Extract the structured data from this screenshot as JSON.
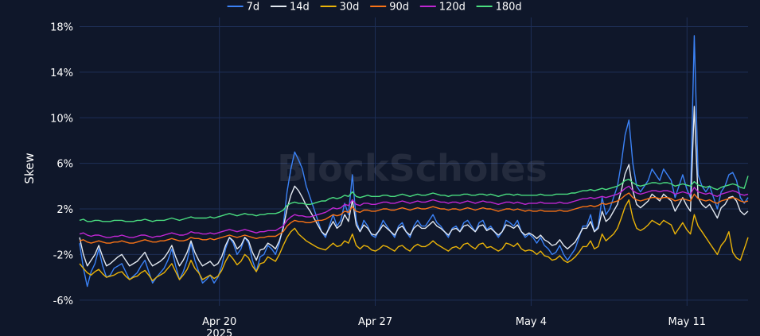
{
  "chart_data": {
    "type": "line",
    "watermark": "BlockScholes",
    "ylabel": "Skew",
    "xlabel": "",
    "yticks": [
      "-6%",
      "-2%",
      "2%",
      "6%",
      "10%",
      "14%",
      "18%"
    ],
    "ytick_values": [
      -6,
      -2,
      2,
      6,
      10,
      14,
      18
    ],
    "ylim": [
      -6.5,
      18.8
    ],
    "x_range_days": [
      0,
      41.6
    ],
    "xticks": [
      {
        "label": "Apr 20",
        "day": 8.7,
        "sub": "2025"
      },
      {
        "label": "Apr 27",
        "day": 18.4
      },
      {
        "label": "May 4",
        "day": 28.1
      },
      {
        "label": "May 11",
        "day": 37.8
      }
    ],
    "legend_position": "top-center",
    "grid": true,
    "series": [
      {
        "name": "7d",
        "color": "#3b82f6",
        "values": [
          -1.0,
          -3.2,
          -4.8,
          -3.5,
          -2.8,
          -1.5,
          -3.0,
          -4.0,
          -3.8,
          -3.2,
          -3.0,
          -2.8,
          -3.5,
          -4.2,
          -3.9,
          -3.6,
          -3.0,
          -2.5,
          -3.5,
          -4.5,
          -4.0,
          -3.6,
          -3.2,
          -2.5,
          -1.5,
          -3.0,
          -4.2,
          -3.5,
          -2.5,
          -1.0,
          -2.5,
          -3.5,
          -4.5,
          -4.2,
          -3.8,
          -4.5,
          -4.0,
          -3.0,
          -1.5,
          -0.5,
          -1.0,
          -2.0,
          -1.5,
          -0.5,
          -1.0,
          -2.5,
          -3.5,
          -2.2,
          -2.0,
          -1.2,
          -1.5,
          -2.0,
          -1.0,
          0.5,
          3.5,
          5.5,
          7.0,
          6.3,
          5.5,
          4.0,
          3.0,
          2.0,
          1.0,
          0.0,
          -0.5,
          0.5,
          1.5,
          0.5,
          1.0,
          2.5,
          1.5,
          5.0,
          1.0,
          0.0,
          1.0,
          0.5,
          -0.3,
          -0.5,
          0.2,
          1.0,
          0.5,
          0.0,
          -0.5,
          0.5,
          0.8,
          0.0,
          -0.5,
          0.5,
          1.0,
          0.5,
          0.5,
          1.0,
          1.5,
          0.8,
          0.5,
          0.0,
          -0.5,
          0.3,
          0.5,
          0.0,
          0.8,
          1.0,
          0.5,
          0.0,
          0.8,
          1.0,
          0.2,
          0.5,
          0.0,
          -0.5,
          0.0,
          1.0,
          0.8,
          0.5,
          1.0,
          0.0,
          -0.5,
          -0.2,
          -0.5,
          -1.0,
          -0.5,
          -1.2,
          -1.5,
          -2.0,
          -1.8,
          -1.2,
          -2.0,
          -2.5,
          -2.0,
          -1.5,
          -0.5,
          0.5,
          0.5,
          1.5,
          0.0,
          0.5,
          3.0,
          1.5,
          2.0,
          3.0,
          4.0,
          6.0,
          8.5,
          9.8,
          6.0,
          4.0,
          3.5,
          4.0,
          4.5,
          5.5,
          5.0,
          4.5,
          5.5,
          5.0,
          4.5,
          3.0,
          4.0,
          5.0,
          3.8,
          3.0,
          17.2,
          5.0,
          4.0,
          3.5,
          4.0,
          3.0,
          2.0,
          3.5,
          4.0,
          5.0,
          5.2,
          4.5,
          3.0,
          2.5,
          3.0
        ]
      },
      {
        "name": "14d",
        "color": "#e2e8f0",
        "values": [
          -0.5,
          -2.0,
          -3.0,
          -2.5,
          -2.0,
          -1.2,
          -2.2,
          -3.0,
          -2.8,
          -2.5,
          -2.2,
          -2.0,
          -2.5,
          -3.0,
          -2.8,
          -2.6,
          -2.2,
          -1.8,
          -2.5,
          -3.0,
          -2.8,
          -2.6,
          -2.3,
          -1.8,
          -1.2,
          -2.2,
          -3.0,
          -2.5,
          -1.8,
          -0.8,
          -1.8,
          -2.5,
          -3.0,
          -2.8,
          -2.6,
          -3.0,
          -2.8,
          -2.2,
          -1.2,
          -0.5,
          -0.8,
          -1.5,
          -1.2,
          -0.5,
          -0.8,
          -1.8,
          -2.5,
          -1.6,
          -1.5,
          -1.0,
          -1.2,
          -1.5,
          -0.8,
          0.3,
          2.0,
          3.2,
          4.0,
          3.6,
          3.0,
          2.3,
          1.8,
          1.2,
          0.6,
          0.0,
          -0.3,
          0.3,
          0.9,
          0.3,
          0.6,
          1.5,
          0.9,
          2.8,
          0.6,
          0.0,
          0.6,
          0.3,
          -0.2,
          -0.3,
          0.1,
          0.6,
          0.3,
          0.0,
          -0.3,
          0.3,
          0.5,
          0.0,
          -0.3,
          0.3,
          0.6,
          0.3,
          0.3,
          0.6,
          0.9,
          0.5,
          0.3,
          0.0,
          -0.3,
          0.2,
          0.3,
          0.0,
          0.5,
          0.6,
          0.3,
          0.0,
          0.5,
          0.6,
          0.1,
          0.3,
          0.0,
          -0.3,
          0.0,
          0.6,
          0.5,
          0.3,
          0.6,
          0.0,
          -0.3,
          -0.1,
          -0.3,
          -0.6,
          -0.3,
          -0.7,
          -0.9,
          -1.2,
          -1.1,
          -0.7,
          -1.2,
          -1.5,
          -1.2,
          -0.9,
          -0.3,
          0.3,
          0.3,
          0.9,
          0.0,
          0.3,
          1.8,
          0.9,
          1.2,
          1.8,
          2.4,
          3.6,
          5.1,
          5.9,
          3.6,
          2.4,
          2.1,
          2.4,
          2.7,
          3.3,
          3.0,
          2.7,
          3.3,
          3.0,
          2.7,
          1.8,
          2.4,
          3.0,
          2.3,
          1.8,
          11.0,
          3.0,
          2.4,
          2.1,
          2.4,
          1.8,
          1.2,
          2.1,
          2.4,
          3.0,
          3.1,
          2.7,
          1.8,
          1.5,
          1.8
        ]
      },
      {
        "name": "30d",
        "color": "#eab308",
        "values": [
          -2.8,
          -3.2,
          -3.6,
          -3.8,
          -3.5,
          -3.3,
          -3.7,
          -4.0,
          -3.9,
          -3.8,
          -3.6,
          -3.5,
          -3.9,
          -4.2,
          -4.0,
          -3.9,
          -3.6,
          -3.4,
          -3.8,
          -4.3,
          -4.0,
          -3.8,
          -3.6,
          -3.2,
          -2.8,
          -3.5,
          -4.2,
          -3.8,
          -3.3,
          -2.5,
          -3.2,
          -3.6,
          -4.2,
          -4.0,
          -3.8,
          -4.1,
          -3.9,
          -3.4,
          -2.6,
          -2.0,
          -2.4,
          -2.9,
          -2.6,
          -2.0,
          -2.3,
          -3.0,
          -3.5,
          -2.8,
          -2.7,
          -2.2,
          -2.4,
          -2.6,
          -2.0,
          -1.2,
          -0.5,
          0.0,
          0.3,
          -0.2,
          -0.5,
          -0.8,
          -1.0,
          -1.2,
          -1.4,
          -1.5,
          -1.6,
          -1.3,
          -1.0,
          -1.3,
          -1.2,
          -0.8,
          -1.0,
          -0.2,
          -1.2,
          -1.5,
          -1.2,
          -1.3,
          -1.6,
          -1.7,
          -1.5,
          -1.2,
          -1.3,
          -1.5,
          -1.7,
          -1.3,
          -1.2,
          -1.5,
          -1.7,
          -1.3,
          -1.1,
          -1.3,
          -1.3,
          -1.1,
          -0.8,
          -1.1,
          -1.3,
          -1.5,
          -1.7,
          -1.4,
          -1.3,
          -1.5,
          -1.1,
          -1.0,
          -1.3,
          -1.5,
          -1.1,
          -1.0,
          -1.4,
          -1.3,
          -1.5,
          -1.7,
          -1.5,
          -1.0,
          -1.1,
          -1.3,
          -1.0,
          -1.5,
          -1.7,
          -1.6,
          -1.7,
          -2.0,
          -1.7,
          -2.1,
          -2.2,
          -2.5,
          -2.4,
          -2.1,
          -2.5,
          -2.7,
          -2.5,
          -2.2,
          -1.8,
          -1.3,
          -1.3,
          -0.8,
          -1.5,
          -1.3,
          -0.2,
          -0.8,
          -0.5,
          -0.2,
          0.3,
          1.2,
          2.2,
          2.8,
          1.2,
          0.3,
          0.1,
          0.3,
          0.6,
          1.0,
          0.8,
          0.6,
          1.0,
          0.8,
          0.6,
          -0.2,
          0.3,
          0.8,
          0.2,
          -0.2,
          1.5,
          0.5,
          0.0,
          -0.5,
          -1.0,
          -1.5,
          -2.0,
          -1.2,
          -0.8,
          0.0,
          -1.8,
          -2.3,
          -2.5,
          -1.5,
          -0.5
        ]
      },
      {
        "name": "90d",
        "color": "#f97316",
        "values": [
          -0.8,
          -0.7,
          -0.9,
          -1.0,
          -0.9,
          -0.8,
          -0.9,
          -1.0,
          -1.0,
          -0.9,
          -0.9,
          -0.8,
          -0.9,
          -1.0,
          -1.0,
          -0.9,
          -0.8,
          -0.7,
          -0.8,
          -0.9,
          -0.9,
          -0.8,
          -0.8,
          -0.7,
          -0.6,
          -0.7,
          -0.8,
          -0.8,
          -0.7,
          -0.5,
          -0.6,
          -0.6,
          -0.7,
          -0.7,
          -0.6,
          -0.7,
          -0.6,
          -0.5,
          -0.4,
          -0.3,
          -0.4,
          -0.5,
          -0.4,
          -0.3,
          -0.4,
          -0.5,
          -0.6,
          -0.5,
          -0.5,
          -0.4,
          -0.4,
          -0.4,
          -0.2,
          0.0,
          0.5,
          0.8,
          1.0,
          0.9,
          0.9,
          0.8,
          0.8,
          0.9,
          1.0,
          1.0,
          1.1,
          1.3,
          1.5,
          1.4,
          1.5,
          1.8,
          1.7,
          2.2,
          1.8,
          1.7,
          1.9,
          1.9,
          1.8,
          1.8,
          1.9,
          2.0,
          2.0,
          1.9,
          1.9,
          2.0,
          2.1,
          2.0,
          1.9,
          2.0,
          2.1,
          2.0,
          2.0,
          2.1,
          2.2,
          2.1,
          2.0,
          2.0,
          1.9,
          2.0,
          2.0,
          1.9,
          2.0,
          2.1,
          2.0,
          1.9,
          2.0,
          2.1,
          2.0,
          2.0,
          1.9,
          1.8,
          1.9,
          2.0,
          2.0,
          1.9,
          2.0,
          1.9,
          1.8,
          1.9,
          1.8,
          1.8,
          1.9,
          1.8,
          1.8,
          1.8,
          1.8,
          1.9,
          1.8,
          1.8,
          1.9,
          2.0,
          2.1,
          2.2,
          2.2,
          2.3,
          2.2,
          2.3,
          2.5,
          2.4,
          2.5,
          2.6,
          2.7,
          2.9,
          3.2,
          3.4,
          3.0,
          2.8,
          2.7,
          2.8,
          2.9,
          3.0,
          3.0,
          2.9,
          3.0,
          3.0,
          2.9,
          2.7,
          2.8,
          2.9,
          2.8,
          2.7,
          3.3,
          2.9,
          2.8,
          2.7,
          2.8,
          2.6,
          2.5,
          2.7,
          2.8,
          2.9,
          3.0,
          2.9,
          2.7,
          2.6,
          2.7
        ]
      },
      {
        "name": "120d",
        "color": "#c026d3",
        "values": [
          -0.2,
          -0.1,
          -0.3,
          -0.4,
          -0.3,
          -0.3,
          -0.4,
          -0.5,
          -0.5,
          -0.4,
          -0.4,
          -0.3,
          -0.4,
          -0.5,
          -0.5,
          -0.4,
          -0.3,
          -0.3,
          -0.4,
          -0.5,
          -0.4,
          -0.4,
          -0.3,
          -0.2,
          -0.1,
          -0.2,
          -0.3,
          -0.3,
          -0.2,
          0.0,
          -0.1,
          -0.1,
          -0.2,
          -0.2,
          -0.1,
          -0.2,
          -0.1,
          0.0,
          0.1,
          0.2,
          0.1,
          0.0,
          0.1,
          0.2,
          0.1,
          0.0,
          -0.1,
          0.0,
          0.0,
          0.1,
          0.1,
          0.1,
          0.3,
          0.5,
          1.0,
          1.3,
          1.5,
          1.4,
          1.4,
          1.3,
          1.3,
          1.4,
          1.5,
          1.6,
          1.7,
          1.9,
          2.1,
          2.0,
          2.1,
          2.4,
          2.3,
          2.8,
          2.4,
          2.3,
          2.5,
          2.5,
          2.4,
          2.4,
          2.5,
          2.6,
          2.6,
          2.5,
          2.5,
          2.6,
          2.7,
          2.6,
          2.5,
          2.6,
          2.7,
          2.6,
          2.6,
          2.7,
          2.8,
          2.7,
          2.6,
          2.6,
          2.5,
          2.6,
          2.6,
          2.5,
          2.6,
          2.7,
          2.6,
          2.5,
          2.6,
          2.7,
          2.6,
          2.6,
          2.5,
          2.4,
          2.5,
          2.6,
          2.6,
          2.5,
          2.6,
          2.5,
          2.4,
          2.5,
          2.5,
          2.5,
          2.6,
          2.5,
          2.5,
          2.5,
          2.5,
          2.6,
          2.5,
          2.5,
          2.6,
          2.7,
          2.8,
          2.9,
          2.9,
          3.0,
          2.9,
          3.0,
          3.1,
          3.0,
          3.1,
          3.2,
          3.3,
          3.5,
          3.8,
          4.0,
          3.6,
          3.4,
          3.3,
          3.4,
          3.5,
          3.6,
          3.6,
          3.5,
          3.6,
          3.6,
          3.5,
          3.3,
          3.4,
          3.5,
          3.4,
          3.3,
          3.9,
          3.5,
          3.4,
          3.3,
          3.4,
          3.2,
          3.1,
          3.3,
          3.4,
          3.5,
          3.6,
          3.5,
          3.3,
          3.2,
          3.3
        ]
      },
      {
        "name": "180d",
        "color": "#4ade80",
        "values": [
          1.0,
          1.1,
          0.9,
          0.9,
          1.0,
          1.0,
          0.9,
          0.9,
          0.9,
          1.0,
          1.0,
          1.0,
          0.9,
          0.9,
          0.9,
          1.0,
          1.0,
          1.1,
          1.0,
          0.9,
          1.0,
          1.0,
          1.0,
          1.1,
          1.2,
          1.1,
          1.0,
          1.1,
          1.2,
          1.3,
          1.2,
          1.2,
          1.2,
          1.2,
          1.3,
          1.2,
          1.3,
          1.4,
          1.5,
          1.6,
          1.5,
          1.4,
          1.5,
          1.6,
          1.5,
          1.5,
          1.4,
          1.5,
          1.5,
          1.6,
          1.6,
          1.6,
          1.7,
          1.9,
          2.3,
          2.5,
          2.6,
          2.5,
          2.5,
          2.4,
          2.4,
          2.5,
          2.6,
          2.7,
          2.7,
          2.9,
          3.0,
          2.9,
          3.0,
          3.2,
          3.1,
          3.5,
          3.1,
          3.0,
          3.1,
          3.2,
          3.1,
          3.1,
          3.1,
          3.2,
          3.2,
          3.1,
          3.1,
          3.2,
          3.3,
          3.2,
          3.1,
          3.2,
          3.3,
          3.2,
          3.2,
          3.3,
          3.4,
          3.3,
          3.2,
          3.2,
          3.1,
          3.2,
          3.2,
          3.2,
          3.3,
          3.3,
          3.2,
          3.2,
          3.3,
          3.3,
          3.2,
          3.3,
          3.2,
          3.1,
          3.2,
          3.3,
          3.3,
          3.2,
          3.3,
          3.2,
          3.2,
          3.2,
          3.2,
          3.2,
          3.3,
          3.2,
          3.2,
          3.2,
          3.3,
          3.3,
          3.3,
          3.3,
          3.4,
          3.4,
          3.5,
          3.6,
          3.6,
          3.7,
          3.6,
          3.7,
          3.8,
          3.7,
          3.8,
          3.9,
          4.0,
          4.2,
          4.5,
          4.6,
          4.3,
          4.1,
          4.0,
          4.1,
          4.2,
          4.3,
          4.3,
          4.2,
          4.3,
          4.3,
          4.2,
          4.0,
          4.1,
          4.2,
          4.1,
          4.0,
          4.4,
          4.1,
          4.0,
          3.9,
          4.0,
          3.8,
          3.7,
          3.9,
          4.0,
          4.1,
          4.2,
          4.1,
          3.9,
          3.8,
          4.9
        ]
      }
    ]
  }
}
